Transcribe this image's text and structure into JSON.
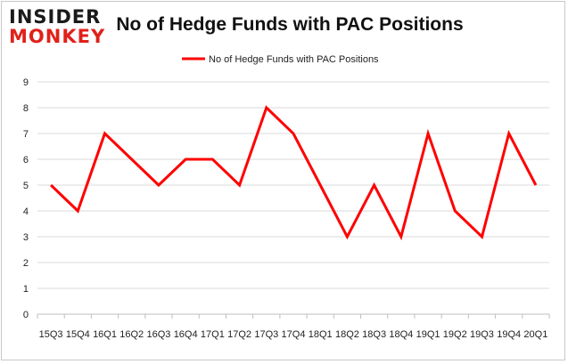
{
  "logo": {
    "line1": "INSIDER",
    "line2": "MONKEY"
  },
  "chart_data": {
    "type": "line",
    "title": "No of Hedge Funds with PAC Positions",
    "xlabel": "",
    "ylabel": "",
    "categories": [
      "15Q3",
      "15Q4",
      "16Q1",
      "16Q2",
      "16Q3",
      "16Q4",
      "17Q1",
      "17Q2",
      "17Q3",
      "17Q4",
      "18Q1",
      "18Q2",
      "18Q3",
      "18Q4",
      "19Q1",
      "19Q2",
      "19Q3",
      "19Q4",
      "20Q1"
    ],
    "series": [
      {
        "name": "No of Hedge Funds with PAC Positions",
        "color": "#ff0000",
        "values": [
          5,
          4,
          7,
          6,
          5,
          6,
          6,
          5,
          8,
          7,
          5,
          3,
          5,
          3,
          7,
          4,
          3,
          7,
          5
        ]
      }
    ],
    "ylim": [
      0,
      9
    ],
    "yticks": [
      0,
      1,
      2,
      3,
      4,
      5,
      6,
      7,
      8,
      9
    ],
    "grid": true,
    "legend": "top-center"
  }
}
